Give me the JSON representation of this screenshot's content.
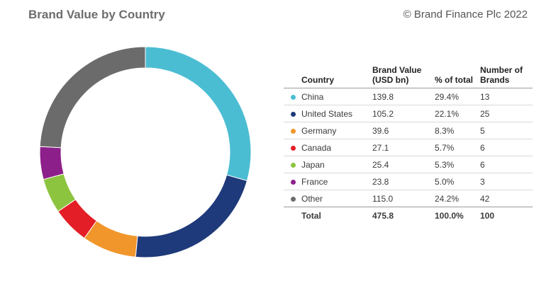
{
  "header": {
    "title": "Brand Value by Country",
    "copyright": "© Brand Finance Plc 2022"
  },
  "table": {
    "headers": {
      "country": "Country",
      "value": "Brand Value (USD bn)",
      "pct": "% of total",
      "num": "Number of Brands"
    },
    "total": {
      "label": "Total",
      "value": "475.8",
      "pct": "100.0%",
      "num": "100"
    }
  },
  "chart_data": {
    "type": "pie",
    "donut": true,
    "title": "Brand Value by Country",
    "categories": [
      "China",
      "United States",
      "Germany",
      "Canada",
      "Japan",
      "France",
      "Other"
    ],
    "values": [
      139.8,
      105.2,
      39.6,
      27.1,
      25.4,
      23.8,
      115.0
    ],
    "percent": [
      "29.4%",
      "22.1%",
      "8.3%",
      "5.7%",
      "5.3%",
      "5.0%",
      "24.2%"
    ],
    "brand_counts": [
      13,
      25,
      5,
      6,
      6,
      3,
      42
    ],
    "colors": [
      "#4bbdd3",
      "#1f3a7a",
      "#f1962b",
      "#e31e26",
      "#8dc43f",
      "#8d1f8b",
      "#6b6b6b"
    ],
    "start_angle_deg": 0,
    "direction": "clockwise"
  }
}
